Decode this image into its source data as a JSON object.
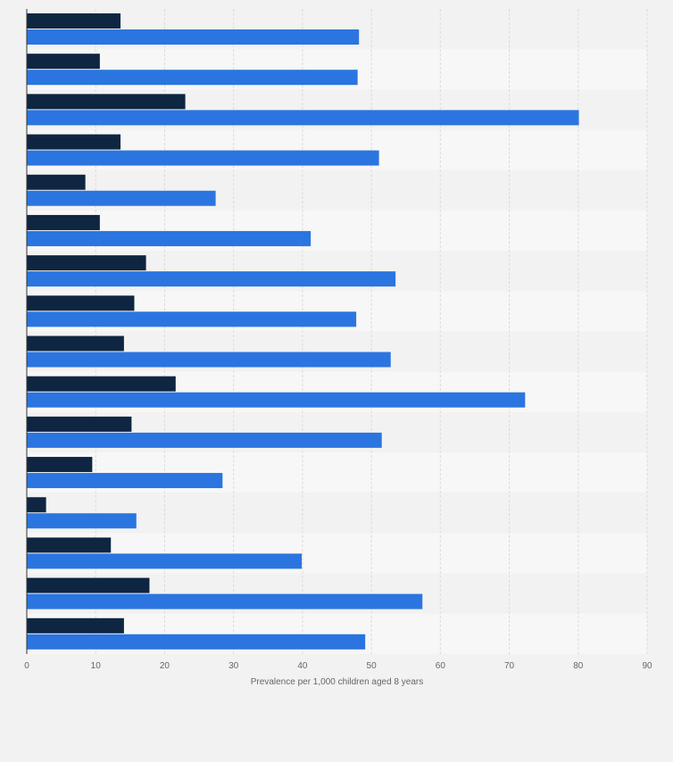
{
  "chart_data": {
    "type": "bar",
    "orientation": "horizontal",
    "title": "",
    "xlabel": "Prevalence per 1,000 children aged 8 years",
    "ylabel": "",
    "xlim": [
      0,
      90
    ],
    "xticks": [
      "0",
      "10",
      "20",
      "30",
      "40",
      "50",
      "60",
      "70",
      "80",
      "90"
    ],
    "grid": true,
    "legend": "none",
    "categories": [
      "",
      "",
      "",
      "",
      "",
      "",
      "",
      "",
      "",
      "",
      "",
      "",
      "",
      "",
      "",
      ""
    ],
    "series": [
      {
        "color": "#0f2642",
        "values": [
          13.6,
          10.6,
          23.0,
          13.6,
          8.5,
          10.6,
          17.3,
          15.6,
          14.1,
          21.6,
          15.2,
          9.5,
          2.8,
          12.2,
          17.8,
          14.1
        ]
      },
      {
        "color": "#2b75e0",
        "values": [
          48.2,
          48.0,
          80.1,
          51.1,
          27.4,
          41.2,
          53.5,
          47.8,
          52.8,
          72.3,
          51.5,
          28.4,
          15.9,
          39.9,
          57.4,
          49.1
        ]
      }
    ]
  }
}
